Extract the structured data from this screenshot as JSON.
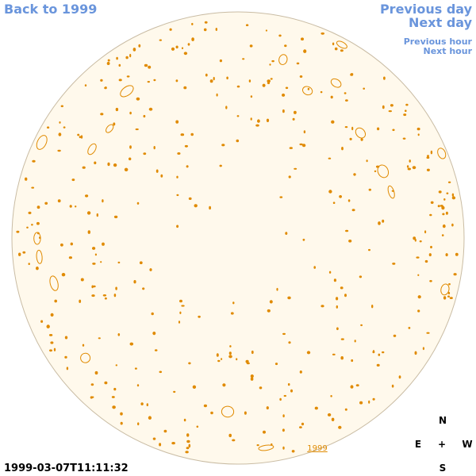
{
  "header": {
    "back_link": "Back to 1999",
    "previous_day": "Previous day",
    "next_day": "Next day",
    "previous_hour": "Previous hour",
    "next_hour": "Next hour"
  },
  "footer": {
    "timestamp": "1999-03-07T11:11:32",
    "year_link": "1999"
  },
  "compass": {
    "north": "N",
    "east": "E",
    "center": "+",
    "west": "W",
    "south": "S"
  }
}
